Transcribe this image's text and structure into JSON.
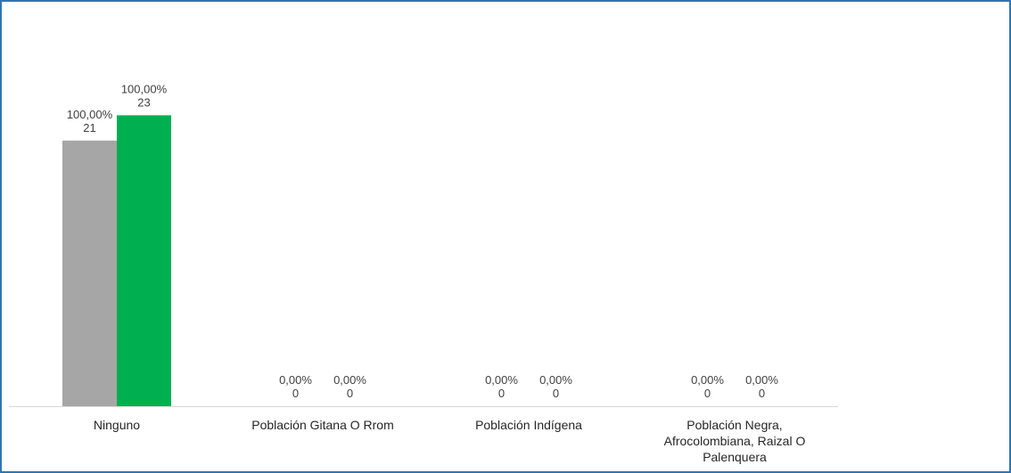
{
  "chart_data": {
    "type": "bar",
    "categories": [
      [
        "Ninguno"
      ],
      [
        "Población Gitana O Rrom"
      ],
      [
        "Población Indígena"
      ],
      [
        "Población Negra,",
        "Afrocolombiana, Raizal O",
        "Palenquera"
      ]
    ],
    "series": [
      {
        "color": "#a6a6a6",
        "values": [
          21,
          0,
          0,
          0
        ],
        "percent_labels": [
          "100,00%",
          "0,00%",
          "0,00%",
          "0,00%"
        ],
        "value_labels": [
          "21",
          "0",
          "0",
          "0"
        ]
      },
      {
        "color": "#00b050",
        "values": [
          23,
          0,
          0,
          0
        ],
        "percent_labels": [
          "100,00%",
          "0,00%",
          "0,00%",
          "0,00%"
        ],
        "value_labels": [
          "23",
          "0",
          "0",
          "0"
        ]
      }
    ],
    "ylim": [
      0,
      30
    ],
    "grid": false,
    "legend": "none",
    "axis_color": "#d9d9d9",
    "border_color": "#2e75b6"
  }
}
